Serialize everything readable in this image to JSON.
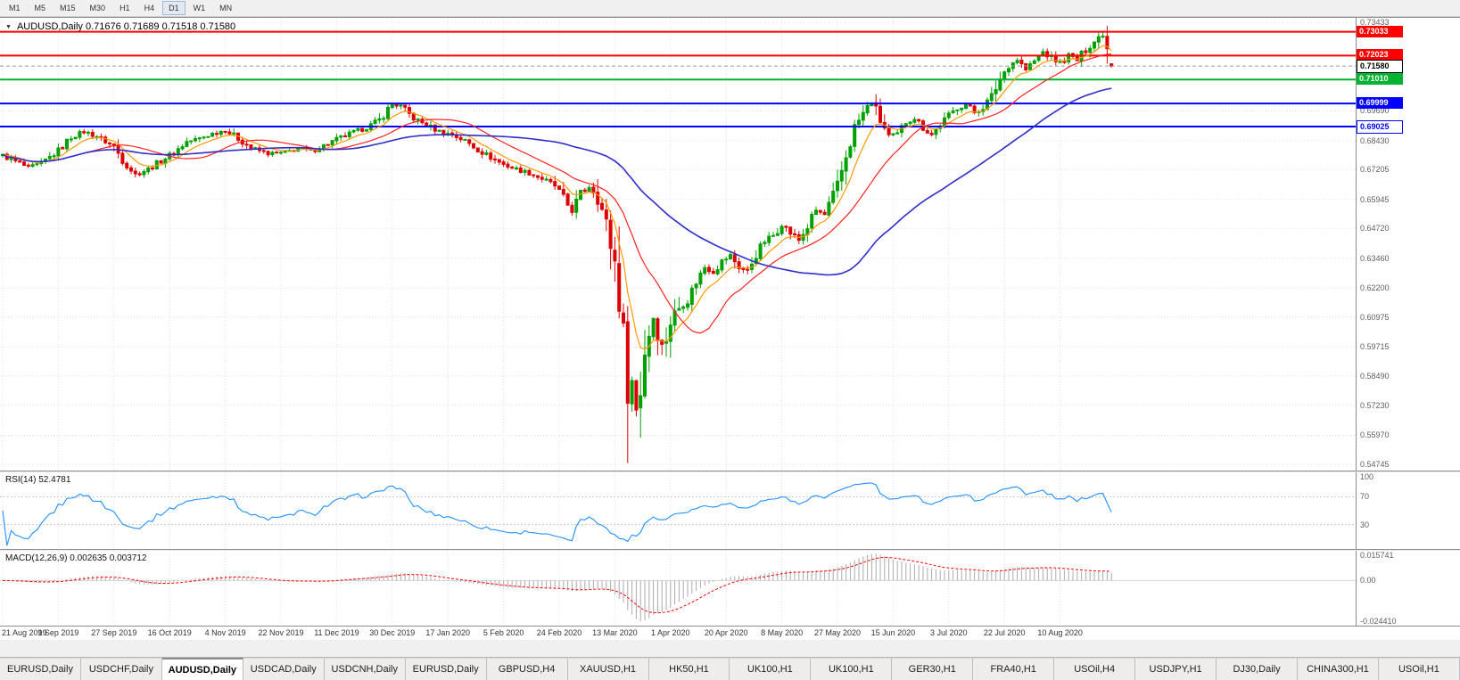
{
  "icons": {
    "collapse_arrow": "▼"
  },
  "timeframe_toolbar": {
    "buttons": [
      "M1",
      "M5",
      "M15",
      "M30",
      "H1",
      "H4",
      "D1",
      "W1",
      "MN"
    ],
    "active": "D1"
  },
  "chart": {
    "title": "AUDUSD,Daily  0.71676 0.71689 0.71518 0.71580"
  },
  "indicators": {
    "rsi": {
      "label": "RSI(14) 52.4781"
    },
    "macd": {
      "label": "MACD(12,26,9) 0.002635 0.003712"
    }
  },
  "tabs": {
    "items": [
      "EURUSD,Daily",
      "USDCHF,Daily",
      "AUDUSD,Daily",
      "USDCAD,Daily",
      "USDCNH,Daily",
      "EURUSD,Daily",
      "GBPUSD,H4",
      "XAUUSD,H1",
      "HK50,H1",
      "UK100,H1",
      "UK100,H1",
      "GER30,H1",
      "FRA40,H1",
      "USOil,H4",
      "USDJPY,H1",
      "DJ30,Daily",
      "CHINA300,H1",
      "USOil,H1"
    ],
    "active_index": 2
  },
  "chart_data": {
    "type": "candlestick",
    "symbol": "AUDUSD",
    "timeframe": "Daily",
    "last_ohlc": {
      "open": 0.71676,
      "high": 0.71689,
      "low": 0.71518,
      "close": 0.7158
    },
    "current_price": 0.7158,
    "price_range": [
      0.5448,
      0.7362
    ],
    "num_candles": 260,
    "up_color": "#00A000",
    "down_color": "#DD0000",
    "y_axis_labels": [
      0.73433,
      0.6969,
      0.6843,
      0.67205,
      0.65945,
      0.6472,
      0.6346,
      0.622,
      0.60975,
      0.59715,
      0.5849,
      0.5723,
      0.5597,
      0.54745
    ],
    "x_labels": [
      "21 Aug 2019",
      "9 Sep 2019",
      "27 Sep 2019",
      "16 Oct 2019",
      "4 Nov 2019",
      "22 Nov 2019",
      "11 Dec 2019",
      "30 Dec 2019",
      "17 Jan 2020",
      "5 Feb 2020",
      "24 Feb 2020",
      "13 Mar 2020",
      "1 Apr 2020",
      "20 Apr 2020",
      "8 May 2020",
      "27 May 2020",
      "15 Jun 2020",
      "3 Jul 2020",
      "22 Jul 2020",
      "10 Aug 2020"
    ],
    "x_label_step": 13,
    "horizontal_lines": [
      {
        "price": 0.73033,
        "color": "#FF0000",
        "label": "0.73033"
      },
      {
        "price": 0.72023,
        "color": "#FF0000",
        "label": "0.72023"
      },
      {
        "price": 0.7101,
        "color": "#00B432",
        "label": "0.71010"
      },
      {
        "price": 0.69999,
        "color": "#0000FF",
        "label": "0.69999"
      },
      {
        "price": 0.69025,
        "color": "#0000FF",
        "label": "0.69025",
        "box_style": "outline"
      }
    ],
    "close_anchors": [
      [
        0,
        0.678
      ],
      [
        3,
        0.6755
      ],
      [
        6,
        0.6728
      ],
      [
        9,
        0.6745
      ],
      [
        13,
        0.68
      ],
      [
        16,
        0.6858
      ],
      [
        19,
        0.688
      ],
      [
        22,
        0.6862
      ],
      [
        26,
        0.6818
      ],
      [
        28,
        0.6762
      ],
      [
        31,
        0.67
      ],
      [
        34,
        0.6722
      ],
      [
        37,
        0.6758
      ],
      [
        40,
        0.6792
      ],
      [
        43,
        0.6838
      ],
      [
        46,
        0.6852
      ],
      [
        49,
        0.6872
      ],
      [
        52,
        0.6888
      ],
      [
        55,
        0.6852
      ],
      [
        58,
        0.6812
      ],
      [
        62,
        0.6788
      ],
      [
        66,
        0.6792
      ],
      [
        69,
        0.6812
      ],
      [
        72,
        0.6798
      ],
      [
        75,
        0.6822
      ],
      [
        78,
        0.6848
      ],
      [
        82,
        0.6878
      ],
      [
        85,
        0.6898
      ],
      [
        88,
        0.693
      ],
      [
        91,
        0.6998
      ],
      [
        93,
        0.6988
      ],
      [
        96,
        0.6938
      ],
      [
        99,
        0.6908
      ],
      [
        102,
        0.6882
      ],
      [
        105,
        0.6868
      ],
      [
        108,
        0.6842
      ],
      [
        111,
        0.6805
      ],
      [
        114,
        0.6772
      ],
      [
        117,
        0.6742
      ],
      [
        120,
        0.6722
      ],
      [
        123,
        0.6706
      ],
      [
        126,
        0.6682
      ],
      [
        129,
        0.6652
      ],
      [
        131,
        0.6598
      ],
      [
        133,
        0.6545
      ],
      [
        135,
        0.6618
      ],
      [
        137,
        0.6648
      ],
      [
        139,
        0.6612
      ],
      [
        141,
        0.6482
      ],
      [
        143,
        0.633
      ],
      [
        144,
        0.6195
      ],
      [
        145,
        0.5985
      ],
      [
        146,
        0.5788
      ],
      [
        147,
        0.5825
      ],
      [
        148,
        0.5705
      ],
      [
        149,
        0.5795
      ],
      [
        150,
        0.5958
      ],
      [
        151,
        0.6032
      ],
      [
        152,
        0.6098
      ],
      [
        153,
        0.6042
      ],
      [
        154,
        0.5972
      ],
      [
        155,
        0.6012
      ],
      [
        156,
        0.6078
      ],
      [
        158,
        0.6138
      ],
      [
        160,
        0.6168
      ],
      [
        162,
        0.6248
      ],
      [
        164,
        0.6308
      ],
      [
        166,
        0.6288
      ],
      [
        168,
        0.6332
      ],
      [
        170,
        0.6358
      ],
      [
        172,
        0.6308
      ],
      [
        174,
        0.6292
      ],
      [
        176,
        0.6362
      ],
      [
        178,
        0.6418
      ],
      [
        180,
        0.6442
      ],
      [
        182,
        0.6488
      ],
      [
        184,
        0.6452
      ],
      [
        186,
        0.6422
      ],
      [
        188,
        0.6478
      ],
      [
        190,
        0.6548
      ],
      [
        192,
        0.6528
      ],
      [
        195,
        0.6648
      ],
      [
        197,
        0.6778
      ],
      [
        199,
        0.6898
      ],
      [
        201,
        0.6958
      ],
      [
        203,
        0.7008
      ],
      [
        205,
        0.6928
      ],
      [
        207,
        0.6862
      ],
      [
        209,
        0.6868
      ],
      [
        211,
        0.6922
      ],
      [
        213,
        0.6938
      ],
      [
        215,
        0.6898
      ],
      [
        217,
        0.6868
      ],
      [
        219,
        0.6912
      ],
      [
        221,
        0.6948
      ],
      [
        223,
        0.6982
      ],
      [
        225,
        0.6995
      ],
      [
        227,
        0.6962
      ],
      [
        229,
        0.6985
      ],
      [
        231,
        0.7028
      ],
      [
        233,
        0.7105
      ],
      [
        235,
        0.7162
      ],
      [
        237,
        0.7185
      ],
      [
        239,
        0.7142
      ],
      [
        241,
        0.7178
      ],
      [
        243,
        0.7218
      ],
      [
        245,
        0.7192
      ],
      [
        247,
        0.7172
      ],
      [
        249,
        0.7205
      ],
      [
        251,
        0.7182
      ],
      [
        253,
        0.7228
      ],
      [
        255,
        0.7262
      ],
      [
        257,
        0.7298
      ],
      [
        258,
        0.7238
      ],
      [
        259,
        0.7158
      ]
    ],
    "crash_candle": {
      "index": 146,
      "low": 0.548
    },
    "swing_high": {
      "index": 257,
      "high": 0.73033
    },
    "moving_averages": [
      {
        "period": 8,
        "type": "ema",
        "color": "#FF9900"
      },
      {
        "period": 20,
        "type": "sma",
        "color": "#FF2020"
      },
      {
        "period": 55,
        "type": "sma",
        "color": "#2E2EC8"
      }
    ],
    "rsi": {
      "period": 14,
      "value": 52.4781,
      "color": "#1E90FF",
      "levels": [
        30,
        70
      ],
      "axis_labels": [
        {
          "value": 100,
          "text": "100"
        },
        {
          "value": 70,
          "text": "70"
        },
        {
          "value": 30,
          "text": "30"
        }
      ]
    },
    "macd": {
      "fast": 12,
      "slow": 26,
      "signal": 9,
      "main_value": 0.002635,
      "signal_value": 0.003712,
      "hist_color": "#ABABAB",
      "signal_color": "#FF0000",
      "axis_labels": [
        {
          "value": 0.015741,
          "text": "0.015741"
        },
        {
          "value": 0,
          "text": "0.00"
        },
        {
          "value": -0.02441,
          "text": "-0.024410"
        }
      ]
    }
  }
}
